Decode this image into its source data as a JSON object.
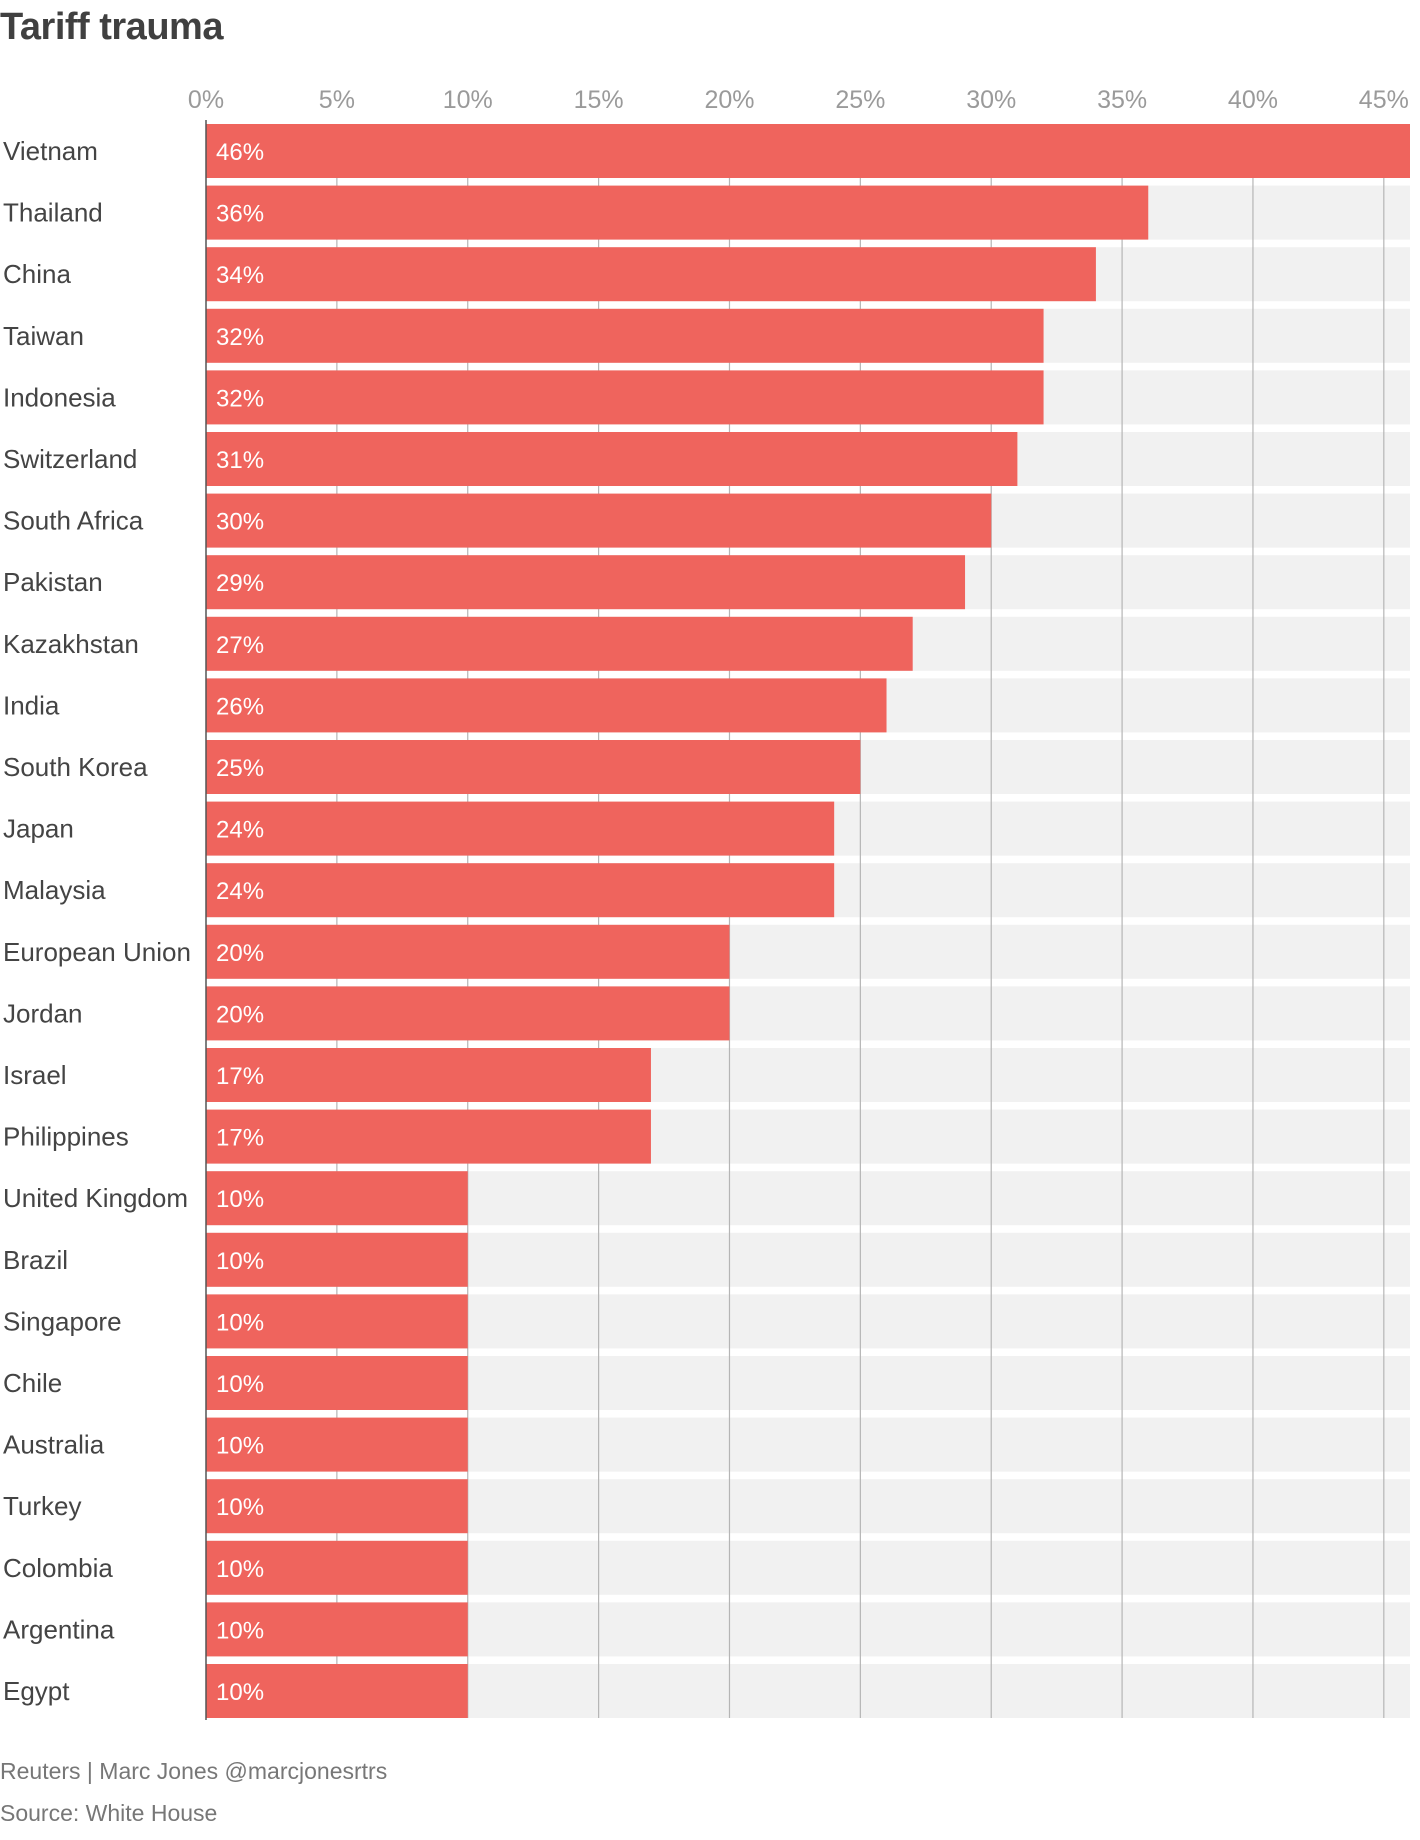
{
  "title": "Tariff trauma",
  "footer": {
    "credit": "Reuters | Marc Jones @marcjonesrtrs",
    "source": "Source: White House"
  },
  "colors": {
    "bar": "#ef645d",
    "track": "#f1f1f1",
    "grid": "#b5b5b5",
    "axis": "#555555"
  },
  "chart_data": {
    "type": "bar",
    "orientation": "horizontal",
    "categories": [
      "Vietnam",
      "Thailand",
      "China",
      "Taiwan",
      "Indonesia",
      "Switzerland",
      "South Africa",
      "Pakistan",
      "Kazakhstan",
      "India",
      "South Korea",
      "Japan",
      "Malaysia",
      "European Union",
      "Jordan",
      "Israel",
      "Philippines",
      "United Kingdom",
      "Brazil",
      "Singapore",
      "Chile",
      "Australia",
      "Turkey",
      "Colombia",
      "Argentina",
      "Egypt"
    ],
    "values": [
      46,
      36,
      34,
      32,
      32,
      31,
      30,
      29,
      27,
      26,
      25,
      24,
      24,
      20,
      20,
      17,
      17,
      10,
      10,
      10,
      10,
      10,
      10,
      10,
      10,
      10
    ],
    "value_labels": [
      "46%",
      "36%",
      "34%",
      "32%",
      "32%",
      "31%",
      "30%",
      "29%",
      "27%",
      "26%",
      "25%",
      "24%",
      "24%",
      "20%",
      "20%",
      "17%",
      "17%",
      "10%",
      "10%",
      "10%",
      "10%",
      "10%",
      "10%",
      "10%",
      "10%",
      "10%"
    ],
    "x_ticks": [
      0,
      5,
      10,
      15,
      20,
      25,
      30,
      35,
      40,
      45
    ],
    "x_tick_labels": [
      "0%",
      "5%",
      "10%",
      "15%",
      "20%",
      "25%",
      "30%",
      "35%",
      "40%",
      "45%"
    ],
    "xlim": [
      0,
      46
    ],
    "tick_position": "top",
    "grid": true,
    "title": "Tariff trauma",
    "xlabel": "",
    "ylabel": ""
  }
}
